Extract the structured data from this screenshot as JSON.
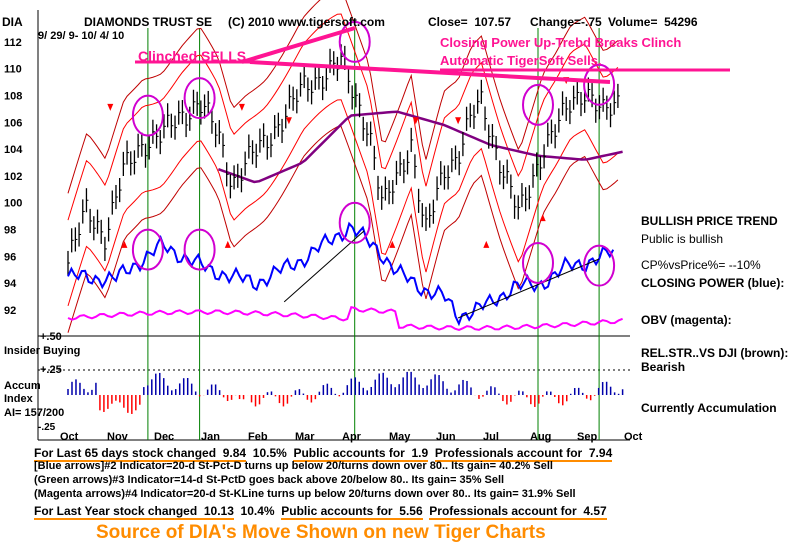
{
  "header": {
    "ticker": "DIA",
    "name": "DIAMONDS TRUST SE",
    "copyright": "(C) 2010 www.tigersoft.com",
    "close": "Close=  107.57",
    "change": "Change=-.75",
    "volume": "Volume=  54296",
    "dates": "9/ 29/ 9-  10/ 4/ 10"
  },
  "annotations": {
    "clinched": "Clinched SELLS",
    "closing_power_1": "Closing Power Up-Trebd Breaks Clinch",
    "closing_power_2": "Automatic TigerSoft Sells."
  },
  "side_labels": {
    "bullish_trend": "BULLISH PRICE TREND",
    "public_bullish": "Public is bullish",
    "cp_vs_price": "CP%vsPrice%= --10%",
    "closing_power": "CLOSING POWER (blue):",
    "obv": "OBV (magenta):",
    "relstr": "REL.STR..VS DJI (brown):",
    "bearish": "Bearish",
    "accumulation": "Currently Accumulation"
  },
  "panel_labels": {
    "plus50": "+.50",
    "insider": "Insider Buying",
    "plus25": "+.25",
    "accum": "Accum",
    "index": "Index",
    "ai": "AI= 157/200",
    "minus25": "-.25"
  },
  "stats": {
    "line1_a": "For Last 65 days stock changed  9.84",
    "line1_b": "10.5%",
    "line1_c": "Public accounts for  1.9",
    "line1_d": "Professionals account for  7.94",
    "line2_a": "For Last Year stock changed  10.13",
    "line2_b": "10.4%",
    "line2_c": "Public accounts for  5.56",
    "line2_d": "Professionals account for  4.57"
  },
  "notes": [
    "[Blue arrows]#2 Indicator=20-d St-Pct-D turns up below 20/turns down over 80.. Its gain= 40.2% Sell",
    "(Green arrows)#3 Indicator=14-d St-PctD goes back above 20/below 80.. Its gain= 35% Sell",
    "(Magenta arrows)#4 Indicator=20-d St-KLine turns up below 20/turns down over 80.. Its gain= 31.9% Sell"
  ],
  "footer": "Source of DIA's Move Shown on new Tiger Charts",
  "colors": {
    "price": "#000000",
    "bands": "#ff0000",
    "moving_average": "#800080",
    "closing_power": "#0000ff",
    "obv": "#ff00ff",
    "accum_bars": "#0000aa",
    "distribution_bars": "#ff0000",
    "signal_lines": "#008000",
    "highlight": "#ff1493",
    "stats_underline": "#ff8c00"
  },
  "chart_data": {
    "type": "line",
    "title": "DIAMONDS TRUST SE",
    "months": [
      "Oct",
      "Nov",
      "Dec",
      "Jan",
      "Feb",
      "Mar",
      "Apr",
      "May",
      "Jun",
      "Jul",
      "Aug",
      "Sep",
      "Oct"
    ],
    "y_ticks": [
      92,
      94,
      96,
      98,
      100,
      102,
      104,
      106,
      108,
      110,
      112
    ],
    "ylim": [
      90.5,
      113
    ],
    "series": [
      {
        "key": "price_close",
        "x": [
          0,
          0.4,
          0.8,
          1.2,
          1.6,
          2,
          2.4,
          2.8,
          3.2,
          3.5,
          3.8,
          4.2,
          4.6,
          5,
          5.4,
          5.8,
          6.1,
          6.4,
          6.7,
          7,
          7.3,
          7.6,
          8,
          8.3,
          8.6,
          8.8,
          9.2,
          9.6,
          10,
          10.1,
          10.4,
          10.7,
          11,
          11.4,
          11.7
        ],
        "values": [
          95.5,
          99.5,
          97.5,
          102.5,
          104.5,
          105,
          106.5,
          107.5,
          105,
          101.5,
          103,
          104.5,
          106.5,
          108.5,
          109.5,
          110.5,
          108,
          105.5,
          99.5,
          102,
          104.5,
          97.5,
          102.5,
          103.5,
          106.5,
          107.5,
          103,
          99,
          103,
          104,
          105.5,
          107.5,
          108.5,
          106.5,
          107.5
        ]
      },
      {
        "key": "moving_average",
        "x": [
          3.2,
          4,
          5,
          6,
          7,
          8,
          9,
          10,
          11,
          11.8
        ],
        "values": [
          102.5,
          101.5,
          103,
          106.5,
          106.8,
          105.8,
          104.3,
          103.5,
          103.2,
          103.8
        ]
      },
      {
        "key": "closing_power",
        "x": [
          0,
          1,
          2,
          3,
          4,
          5,
          6,
          6.6,
          7,
          7.6,
          8,
          8.3,
          9,
          9.5,
          10,
          10.6,
          11,
          11.6
        ],
        "values": [
          94.5,
          94.3,
          96.8,
          95,
          94,
          95.8,
          98.2,
          96.5,
          94.8,
          93.5,
          93,
          91.5,
          92.5,
          93.8,
          93.8,
          95.2,
          95.5,
          96.3
        ]
      }
    ],
    "signal_months": [
      1.7,
      2.8,
      6.1,
      10,
      11.3
    ]
  }
}
